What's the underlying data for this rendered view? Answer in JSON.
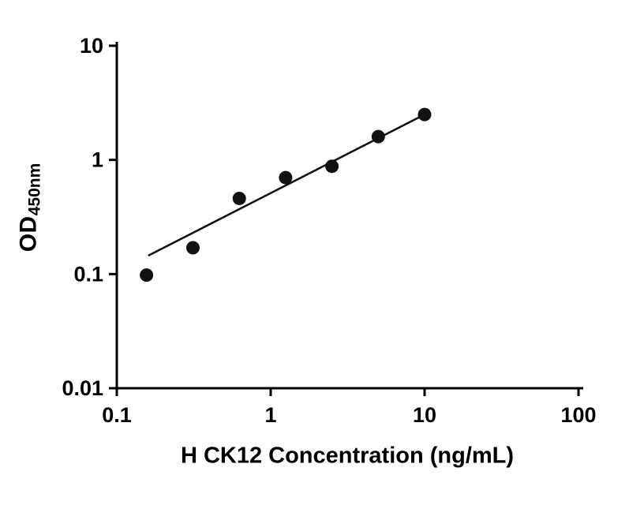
{
  "chart_data": {
    "type": "scatter",
    "title": "",
    "xlabel": "H CK12 Concentration (ng/mL)",
    "ylabel_main": "OD",
    "ylabel_sub": "450nm",
    "x_scale": "log",
    "y_scale": "log",
    "xlim": [
      0.1,
      100
    ],
    "ylim": [
      0.01,
      10
    ],
    "grid": false,
    "legend": false,
    "point_color": "#111111",
    "line_color": "#111111",
    "axis_color": "#000000",
    "x_ticks": [
      {
        "value": 0.1,
        "label": "0.1"
      },
      {
        "value": 1,
        "label": "1"
      },
      {
        "value": 10,
        "label": "10"
      },
      {
        "value": 100,
        "label": "100"
      }
    ],
    "y_ticks": [
      {
        "value": 0.01,
        "label": "0.01"
      },
      {
        "value": 0.1,
        "label": "0.1"
      },
      {
        "value": 1,
        "label": "1"
      },
      {
        "value": 10,
        "label": "10"
      }
    ],
    "points": [
      {
        "x": 0.156,
        "y": 0.098
      },
      {
        "x": 0.3125,
        "y": 0.17
      },
      {
        "x": 0.625,
        "y": 0.46
      },
      {
        "x": 1.25,
        "y": 0.7
      },
      {
        "x": 2.5,
        "y": 0.88
      },
      {
        "x": 5,
        "y": 1.6
      },
      {
        "x": 10,
        "y": 2.5
      }
    ],
    "trendline": {
      "x1": 0.16,
      "y1": 0.145,
      "x2": 10,
      "y2": 2.5
    }
  }
}
